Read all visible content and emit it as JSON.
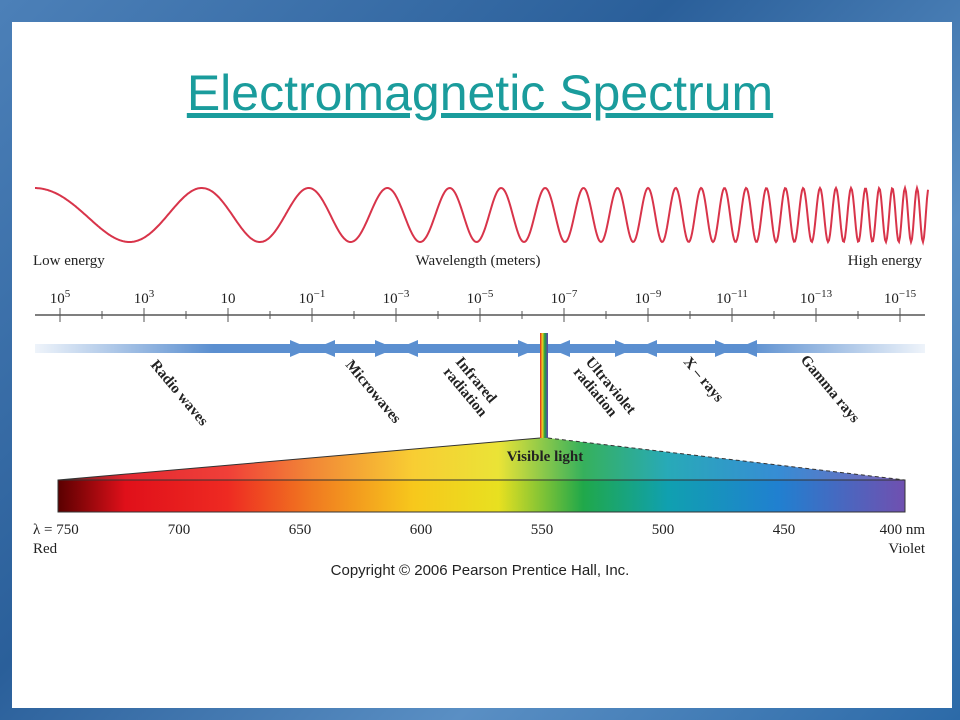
{
  "title": "Electromagnetic Spectrum",
  "wavelength_axis": {
    "left_label": "Low energy",
    "center_label": "Wavelength (meters)",
    "right_label": "High energy",
    "ticks": [
      {
        "base": "10",
        "exp": "5"
      },
      {
        "base": "10",
        "exp": "3"
      },
      {
        "base": "10"
      },
      {
        "base": "10",
        "exp": "−1"
      },
      {
        "base": "10",
        "exp": "−3"
      },
      {
        "base": "10",
        "exp": "−5"
      },
      {
        "base": "10",
        "exp": "−7"
      },
      {
        "base": "10",
        "exp": "−9"
      },
      {
        "base": "10",
        "exp": "−11"
      },
      {
        "base": "10",
        "exp": "−13"
      },
      {
        "base": "10",
        "exp": "−15"
      }
    ]
  },
  "bands": [
    [
      "Radio waves"
    ],
    [
      "Microwaves"
    ],
    [
      "Infrared",
      "radiation"
    ],
    [
      "Ultraviolet",
      "radiation"
    ],
    [
      "X – rays"
    ],
    [
      "Gamma rays"
    ]
  ],
  "visible": {
    "label": "Visible light",
    "ticks": [
      "λ = 750",
      "700",
      "650",
      "600",
      "550",
      "500",
      "450",
      "400 nm"
    ],
    "left_color": "Red",
    "right_color": "Violet"
  },
  "copyright": "Copyright © 2006 Pearson Prentice Hall, Inc."
}
